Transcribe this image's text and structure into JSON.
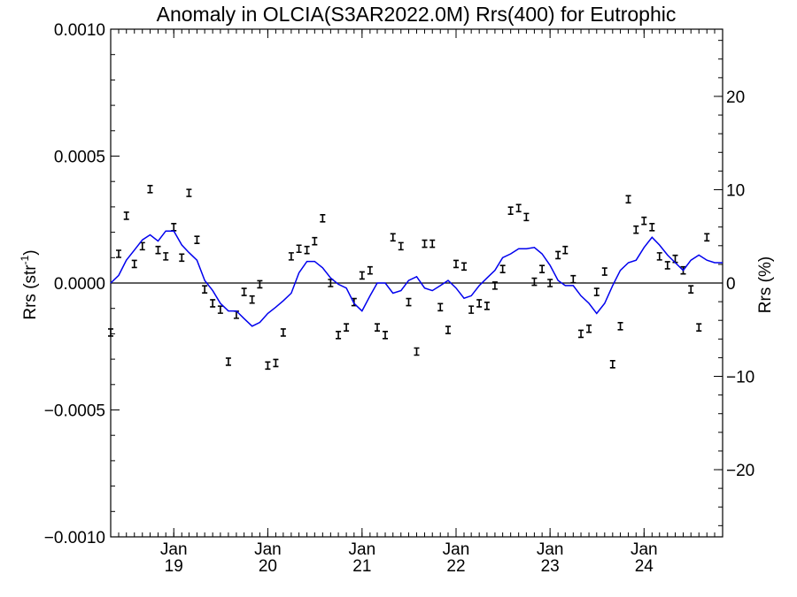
{
  "chart_data": {
    "type": "line",
    "title": "Anomaly in OLCIA(S3AR2022.0M) Rrs(400) for Eutrophic",
    "ylabel": "Rrs (str",
    "ylabel_sup": "-1",
    "ylabel_suffix": ")",
    "y2label": "Rrs (%)",
    "ylim": [
      -0.001,
      0.001
    ],
    "y2lim": [
      -27.2,
      27.2
    ],
    "xlim": [
      "2018-05-01",
      "2024-11-01"
    ],
    "yticks": [
      {
        "value": 0.001,
        "label": "0.0010"
      },
      {
        "value": 0.0005,
        "label": "0.0005"
      },
      {
        "value": 0.0,
        "label": "0.0000"
      },
      {
        "value": -0.0005,
        "label": "−0.0005"
      },
      {
        "value": -0.001,
        "label": "−0.0010"
      }
    ],
    "y2ticks": [
      {
        "value": 20,
        "label": "20"
      },
      {
        "value": 10,
        "label": "10"
      },
      {
        "value": 0,
        "label": "0"
      },
      {
        "value": -10,
        "label": "−10"
      },
      {
        "value": -20,
        "label": "−20"
      }
    ],
    "xticks": [
      {
        "date": "2019-01-01",
        "month": "Jan",
        "year": "19"
      },
      {
        "date": "2020-01-01",
        "month": "Jan",
        "year": "20"
      },
      {
        "date": "2021-01-01",
        "month": "Jan",
        "year": "21"
      },
      {
        "date": "2022-01-01",
        "month": "Jan",
        "year": "22"
      },
      {
        "date": "2023-01-01",
        "month": "Jan",
        "year": "23"
      },
      {
        "date": "2024-01-01",
        "month": "Jan",
        "year": "24"
      }
    ],
    "zero_line": true,
    "series": [
      {
        "kind": "errorbar",
        "color": "#000000",
        "points": [
          [
            "2018-05-01",
            -0.000195
          ],
          [
            "2018-06-01",
            0.000115
          ],
          [
            "2018-07-01",
            0.000265
          ],
          [
            "2018-08-01",
            7.5e-05
          ],
          [
            "2018-09-01",
            0.000145
          ],
          [
            "2018-10-01",
            0.00037
          ],
          [
            "2018-11-01",
            0.00013
          ],
          [
            "2018-12-01",
            0.000105
          ],
          [
            "2019-01-01",
            0.00022
          ],
          [
            "2019-02-01",
            0.0001
          ],
          [
            "2019-03-01",
            0.000355
          ],
          [
            "2019-04-01",
            0.00017
          ],
          [
            "2019-05-01",
            -2.5e-05
          ],
          [
            "2019-06-01",
            -8e-05
          ],
          [
            "2019-07-01",
            -0.000105
          ],
          [
            "2019-08-01",
            -0.00031
          ],
          [
            "2019-09-01",
            -0.000125
          ],
          [
            "2019-10-01",
            -3.5e-05
          ],
          [
            "2019-11-01",
            -6.5e-05
          ],
          [
            "2019-12-01",
            -5e-06
          ],
          [
            "2020-01-01",
            -0.000325
          ],
          [
            "2020-02-01",
            -0.000315
          ],
          [
            "2020-03-01",
            -0.000195
          ],
          [
            "2020-04-01",
            0.000105
          ],
          [
            "2020-05-01",
            0.000135
          ],
          [
            "2020-06-01",
            0.00013
          ],
          [
            "2020-07-01",
            0.000165
          ],
          [
            "2020-08-01",
            0.000255
          ],
          [
            "2020-09-01",
            0.0
          ],
          [
            "2020-10-01",
            -0.000205
          ],
          [
            "2020-11-01",
            -0.000175
          ],
          [
            "2020-12-01",
            -7.5e-05
          ],
          [
            "2021-01-01",
            3e-05
          ],
          [
            "2021-02-01",
            5e-05
          ],
          [
            "2021-03-01",
            -0.000175
          ],
          [
            "2021-04-01",
            -0.000205
          ],
          [
            "2021-05-01",
            0.00018
          ],
          [
            "2021-06-01",
            0.000145
          ],
          [
            "2021-07-01",
            -7.5e-05
          ],
          [
            "2021-08-01",
            -0.00027
          ],
          [
            "2021-09-01",
            0.000155
          ],
          [
            "2021-10-01",
            0.000155
          ],
          [
            "2021-11-01",
            -9.5e-05
          ],
          [
            "2021-12-01",
            -0.000185
          ],
          [
            "2022-01-01",
            7.5e-05
          ],
          [
            "2022-02-01",
            6.5e-05
          ],
          [
            "2022-03-01",
            -0.000105
          ],
          [
            "2022-04-01",
            -8e-05
          ],
          [
            "2022-05-01",
            -9e-05
          ],
          [
            "2022-06-01",
            -1e-05
          ],
          [
            "2022-07-01",
            5.5e-05
          ],
          [
            "2022-08-01",
            0.000285
          ],
          [
            "2022-09-01",
            0.000295
          ],
          [
            "2022-10-01",
            0.00026
          ],
          [
            "2022-11-01",
            5e-06
          ],
          [
            "2022-12-01",
            5.5e-05
          ],
          [
            "2023-01-01",
            0.0
          ],
          [
            "2023-02-01",
            0.00011
          ],
          [
            "2023-03-01",
            0.00013
          ],
          [
            "2023-04-01",
            1.5e-05
          ],
          [
            "2023-05-01",
            -0.0002
          ],
          [
            "2023-06-01",
            -0.00018
          ],
          [
            "2023-07-01",
            -3.5e-05
          ],
          [
            "2023-08-01",
            4.5e-05
          ],
          [
            "2023-09-01",
            -0.00032
          ],
          [
            "2023-10-01",
            -0.00017
          ],
          [
            "2023-11-01",
            0.00033
          ],
          [
            "2023-12-01",
            0.00021
          ],
          [
            "2024-01-01",
            0.000245
          ],
          [
            "2024-02-01",
            0.00022
          ],
          [
            "2024-03-01",
            0.000105
          ],
          [
            "2024-04-01",
            7e-05
          ],
          [
            "2024-05-01",
            9.5e-05
          ],
          [
            "2024-06-01",
            5e-05
          ],
          [
            "2024-07-01",
            -2.5e-05
          ],
          [
            "2024-08-01",
            -0.000175
          ],
          [
            "2024-09-01",
            0.00018
          ]
        ]
      },
      {
        "kind": "line",
        "color": "#0000ee",
        "points": [
          [
            "2018-05-01",
            0.0
          ],
          [
            "2018-06-01",
            3e-05
          ],
          [
            "2018-07-01",
            9e-05
          ],
          [
            "2018-08-01",
            0.00013
          ],
          [
            "2018-09-01",
            0.00017
          ],
          [
            "2018-10-01",
            0.00019
          ],
          [
            "2018-11-01",
            0.000165
          ],
          [
            "2018-12-01",
            0.000205
          ],
          [
            "2019-01-01",
            0.000205
          ],
          [
            "2019-02-01",
            0.00015
          ],
          [
            "2019-03-01",
            0.00012
          ],
          [
            "2019-04-01",
            9e-05
          ],
          [
            "2019-05-01",
            1e-05
          ],
          [
            "2019-06-01",
            -3e-05
          ],
          [
            "2019-07-01",
            -8e-05
          ],
          [
            "2019-08-01",
            -0.00011
          ],
          [
            "2019-09-01",
            -0.00011
          ],
          [
            "2019-10-01",
            -0.00014
          ],
          [
            "2019-11-01",
            -0.00017
          ],
          [
            "2019-12-01",
            -0.000155
          ],
          [
            "2020-01-01",
            -0.00012
          ],
          [
            "2020-02-01",
            -9.5e-05
          ],
          [
            "2020-03-01",
            -7e-05
          ],
          [
            "2020-04-01",
            -4e-05
          ],
          [
            "2020-05-01",
            4e-05
          ],
          [
            "2020-06-01",
            8.5e-05
          ],
          [
            "2020-07-01",
            8.5e-05
          ],
          [
            "2020-08-01",
            6e-05
          ],
          [
            "2020-09-01",
            2e-05
          ],
          [
            "2020-10-01",
            -5e-06
          ],
          [
            "2020-11-01",
            -2e-05
          ],
          [
            "2020-12-01",
            -8e-05
          ],
          [
            "2021-01-01",
            -0.00011
          ],
          [
            "2021-02-01",
            -5e-05
          ],
          [
            "2021-03-01",
            0.0
          ],
          [
            "2021-04-01",
            0.0
          ],
          [
            "2021-05-01",
            -4e-05
          ],
          [
            "2021-06-01",
            -3e-05
          ],
          [
            "2021-07-01",
            1e-05
          ],
          [
            "2021-08-01",
            2.5e-05
          ],
          [
            "2021-09-01",
            -2e-05
          ],
          [
            "2021-10-01",
            -3e-05
          ],
          [
            "2021-11-01",
            -1e-05
          ],
          [
            "2021-12-01",
            1e-05
          ],
          [
            "2022-01-01",
            -2e-05
          ],
          [
            "2022-02-01",
            -6e-05
          ],
          [
            "2022-03-01",
            -5e-05
          ],
          [
            "2022-04-01",
            -1e-05
          ],
          [
            "2022-05-01",
            2e-05
          ],
          [
            "2022-06-01",
            5e-05
          ],
          [
            "2022-07-01",
            0.0001
          ],
          [
            "2022-08-01",
            0.000115
          ],
          [
            "2022-09-01",
            0.000135
          ],
          [
            "2022-10-01",
            0.000135
          ],
          [
            "2022-11-01",
            0.00014
          ],
          [
            "2022-12-01",
            0.000115
          ],
          [
            "2023-01-01",
            7e-05
          ],
          [
            "2023-02-01",
            1e-05
          ],
          [
            "2023-03-01",
            -1e-05
          ],
          [
            "2023-04-01",
            -1e-05
          ],
          [
            "2023-05-01",
            -5e-05
          ],
          [
            "2023-06-01",
            -8e-05
          ],
          [
            "2023-07-01",
            -0.00012
          ],
          [
            "2023-08-01",
            -8e-05
          ],
          [
            "2023-09-01",
            -1e-05
          ],
          [
            "2023-10-01",
            5e-05
          ],
          [
            "2023-11-01",
            8e-05
          ],
          [
            "2023-12-01",
            9e-05
          ],
          [
            "2024-01-01",
            0.00014
          ],
          [
            "2024-02-01",
            0.00018
          ],
          [
            "2024-03-01",
            0.00015
          ],
          [
            "2024-04-01",
            0.00011
          ],
          [
            "2024-05-01",
            8e-05
          ],
          [
            "2024-06-01",
            5e-05
          ],
          [
            "2024-07-01",
            9e-05
          ],
          [
            "2024-08-01",
            0.00011
          ],
          [
            "2024-09-01",
            9e-05
          ],
          [
            "2024-10-01",
            8e-05
          ],
          [
            "2024-11-01",
            8e-05
          ]
        ]
      }
    ]
  }
}
